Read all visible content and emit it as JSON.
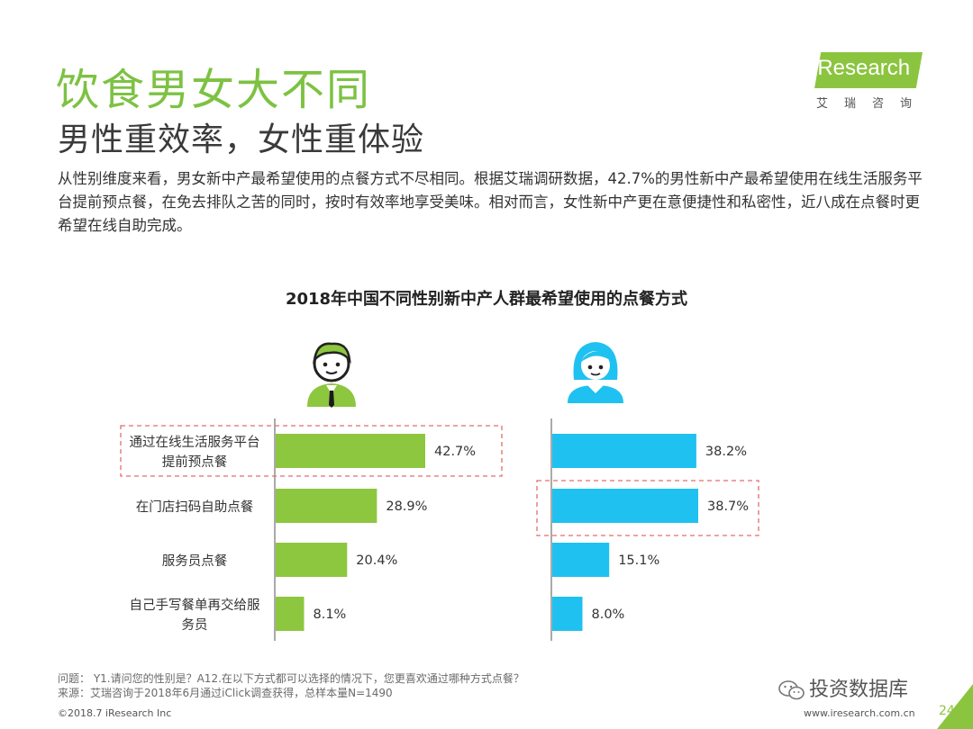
{
  "header": {
    "title": "饮食男女大不同",
    "subtitle": "男性重效率，女性重体验",
    "intro": "从性别维度来看，男女新中产最希望使用的点餐方式不尽相同。根据艾瑞调研数据，42.7%的男性新中产最希望使用在线生活服务平台提前预点餐，在免去排队之苦的同时，按时有效率地享受美味。相对而言，女性新中产更在意便捷性和私密性，近八成在点餐时更希望在线自助完成。"
  },
  "logo": {
    "brand": "iResearch",
    "brand_cn": "艾瑞咨询"
  },
  "chart_data": {
    "type": "bar",
    "orientation": "horizontal",
    "title": "2018年中国不同性别新中产人群最希望使用的点餐方式",
    "categories": [
      [
        "通过在线生活服务平台",
        "提前预点餐"
      ],
      [
        "在门店扫码自助点餐"
      ],
      [
        "服务员点餐"
      ],
      [
        "自己手写餐单再交给服",
        "务员"
      ]
    ],
    "series": [
      {
        "values": [
          42.7,
          28.9,
          20.4,
          8.1
        ],
        "labels": [
          "42.7%",
          "28.9%",
          "20.4%",
          "8.1%"
        ],
        "color": "#8dc63f",
        "icon": "male-avatar-icon"
      },
      {
        "values": [
          38.2,
          38.7,
          15.1,
          8.0
        ],
        "labels": [
          "38.2%",
          "38.7%",
          "15.1%",
          "8.0%"
        ],
        "color": "#1fc1f0",
        "icon": "female-avatar-icon"
      }
    ],
    "highlight": {
      "male": 0,
      "female": 1
    },
    "highlight_color": "#e36c6c"
  },
  "footer": {
    "question": "问题： Y1.请问您的性别是？A12.在以下方式都可以选择的情况下，您更喜欢通过哪种方式点餐？",
    "source": "来源：艾瑞咨询于2018年6月通过iClick调查获得，总样本量N=1490",
    "copyright": "©2018.7 iResearch Inc",
    "site": "www.iresearch.com.cn",
    "page": "24",
    "watermark": "投资数据库"
  }
}
